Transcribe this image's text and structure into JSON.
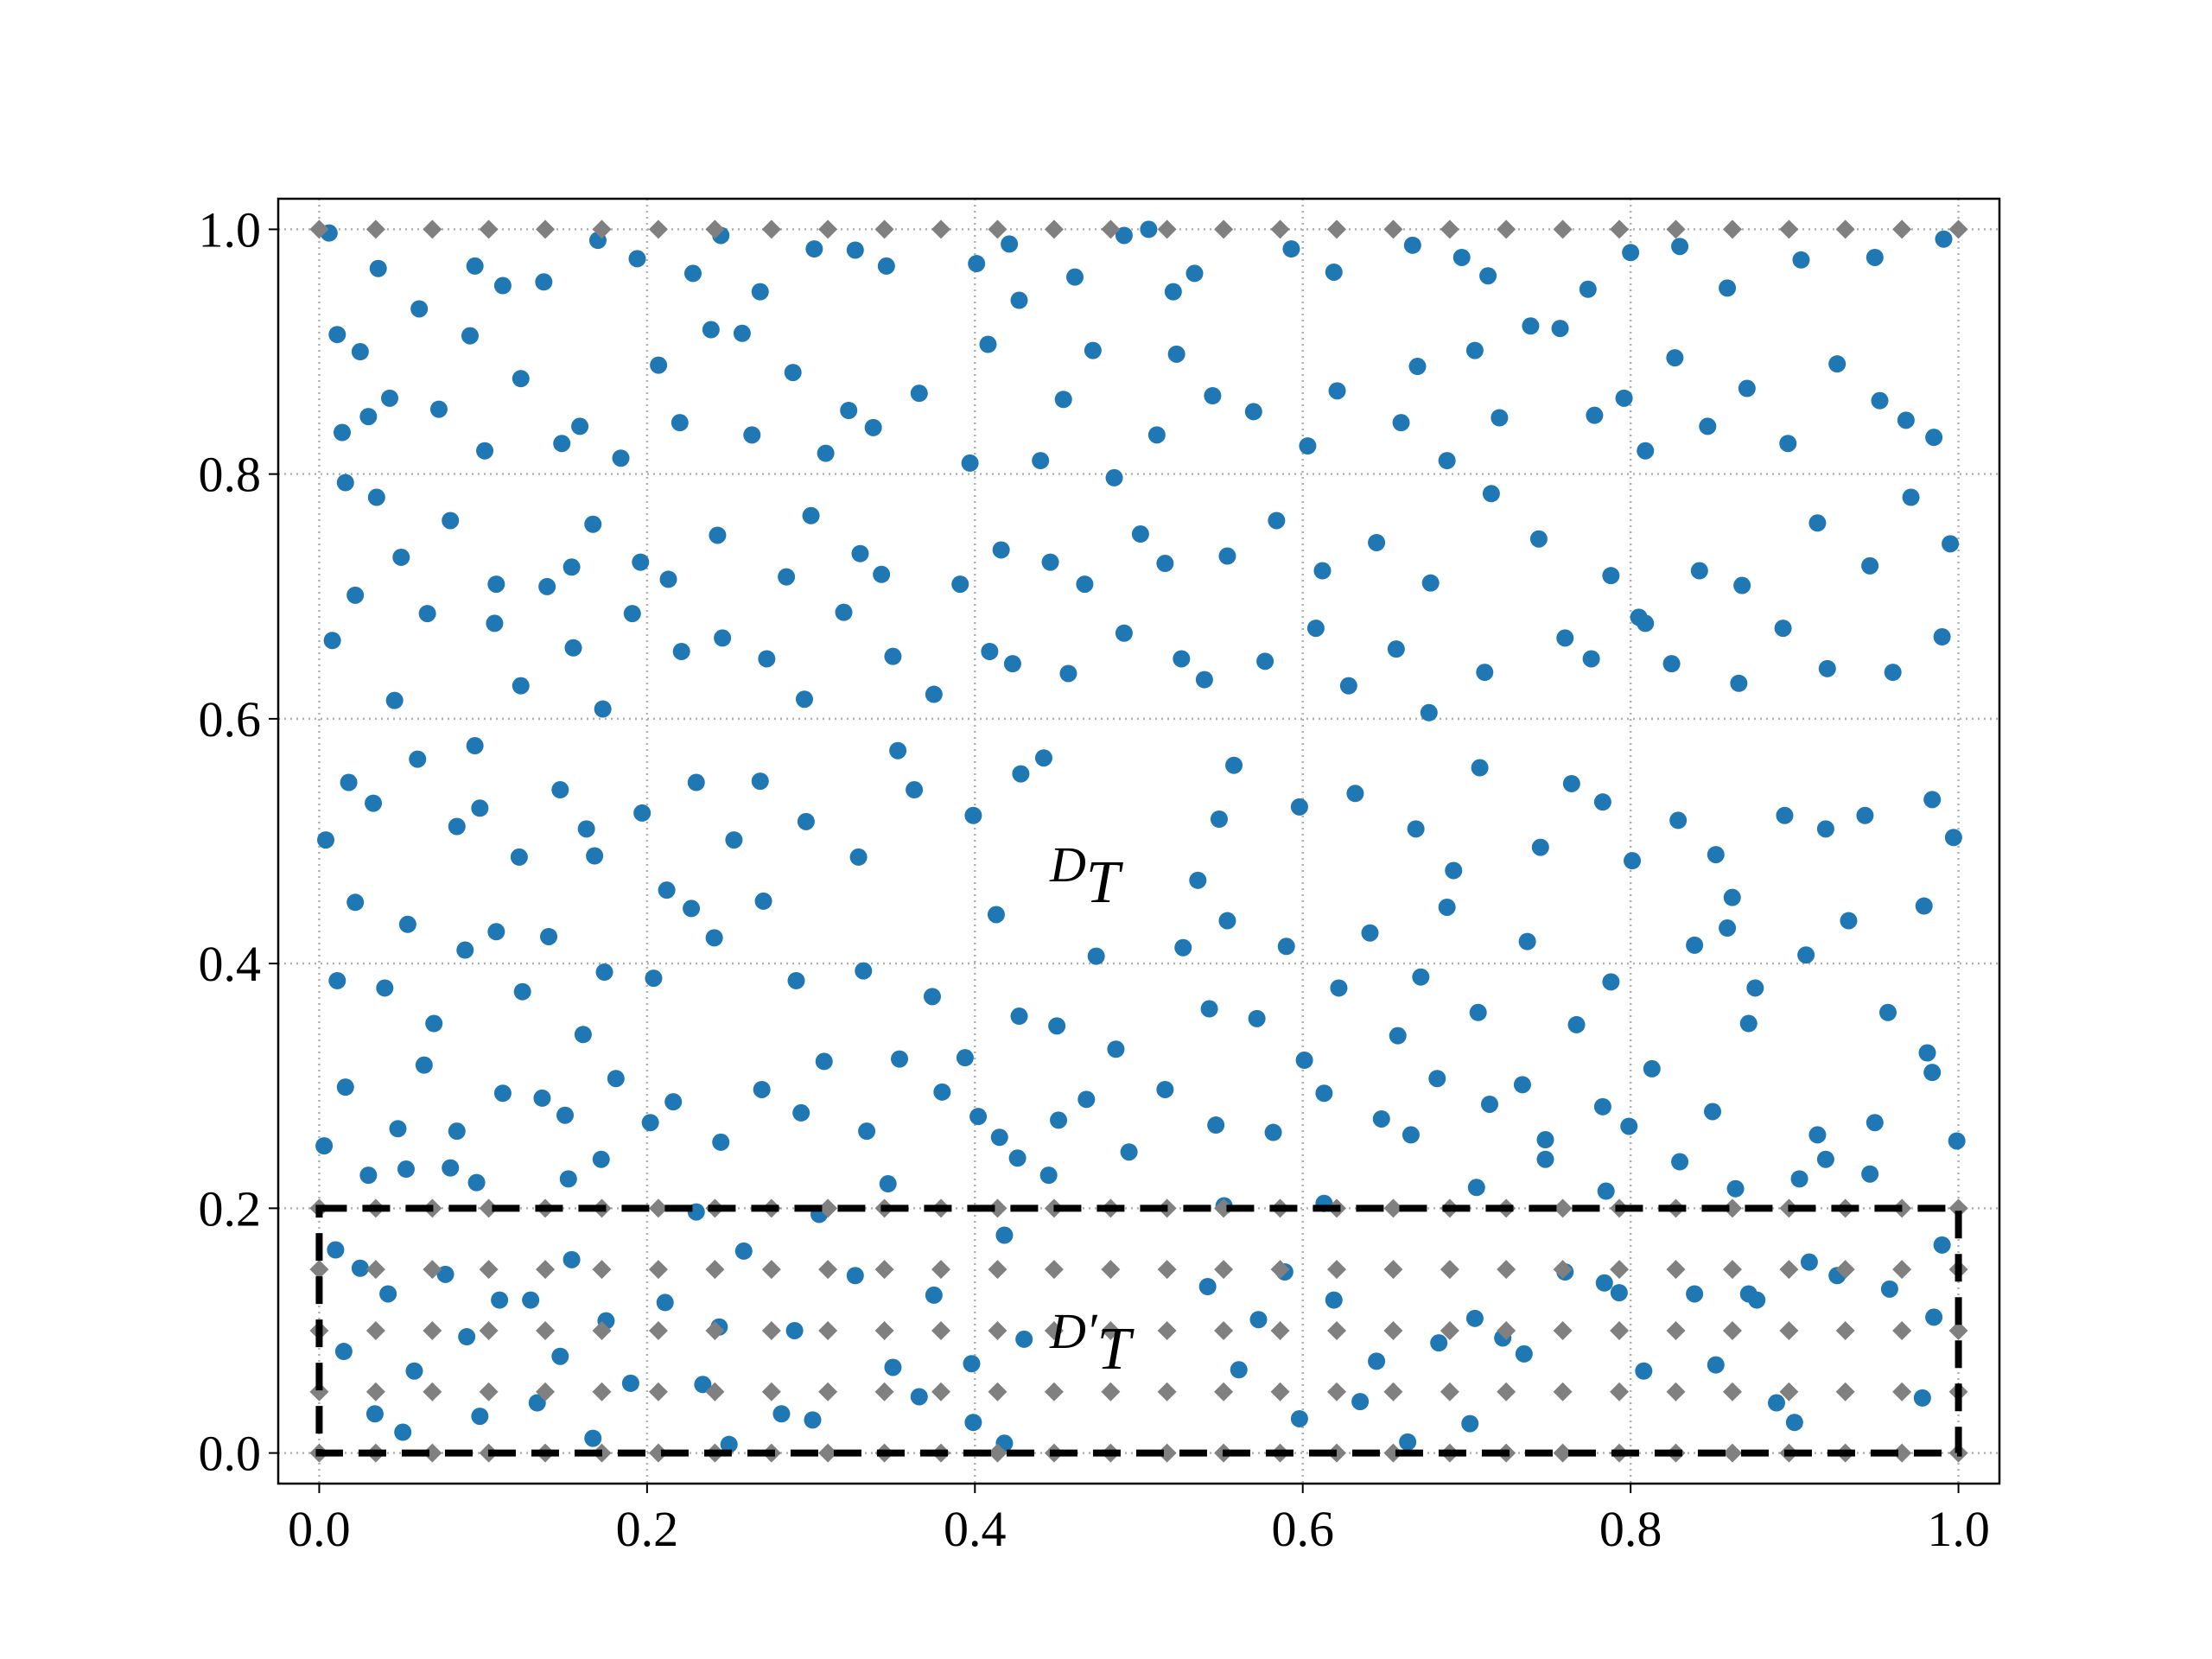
{
  "chart_data": {
    "type": "scatter",
    "xlim": [
      -0.025,
      1.025
    ],
    "ylim": [
      -0.025,
      1.025
    ],
    "xticks": [
      {
        "value": 0,
        "label": "0.0"
      },
      {
        "value": 0.2,
        "label": "0.2"
      },
      {
        "value": 0.4,
        "label": "0.4"
      },
      {
        "value": 0.6,
        "label": "0.6"
      },
      {
        "value": 0.8,
        "label": "0.8"
      },
      {
        "value": 1,
        "label": "1.0"
      }
    ],
    "yticks": [
      {
        "value": 0,
        "label": "0.0"
      },
      {
        "value": 0.2,
        "label": "0.2"
      },
      {
        "value": 0.4,
        "label": "0.4"
      },
      {
        "value": 0.6,
        "label": "0.6"
      },
      {
        "value": 0.8,
        "label": "0.8"
      },
      {
        "value": 1,
        "label": "1.0"
      }
    ],
    "grid": true,
    "region": {
      "x": [
        0,
        1
      ],
      "y": [
        0,
        0.2
      ]
    },
    "annotations": [
      {
        "text": "D",
        "sub": "T"
      },
      {
        "text": "D′",
        "sub": "T"
      }
    ],
    "series": [
      {
        "color": "#1f77b4",
        "marker": "circle",
        "x": [
          0.006,
          0.011,
          0.036,
          0.025,
          0.061,
          0.095,
          0.112,
          0.137,
          0.17,
          0.194,
          0.228,
          0.245,
          0.269,
          0.302,
          0.327,
          0.346,
          0.401,
          0.421,
          0.461,
          0.491,
          0.506,
          0.521,
          0.534,
          0.593,
          0.619,
          0.667,
          0.697,
          0.713,
          0.774,
          0.8,
          0.83,
          0.859,
          0.904,
          0.949,
          0.991,
          0.014,
          0.03,
          0.043,
          0.073,
          0.092,
          0.123,
          0.101,
          0.148,
          0.159,
          0.184,
          0.207,
          0.22,
          0.239,
          0.258,
          0.264,
          0.289,
          0.309,
          0.323,
          0.338,
          0.366,
          0.397,
          0.408,
          0.427,
          0.44,
          0.454,
          0.472,
          0.485,
          0.511,
          0.523,
          0.545,
          0.57,
          0.603,
          0.621,
          0.66,
          0.67,
          0.688,
          0.705,
          0.72,
          0.739,
          0.757,
          0.778,
          0.796,
          0.809,
          0.827,
          0.847,
          0.871,
          0.896,
          0.926,
          0.952,
          0.968,
          0.985,
          0.016,
          0.035,
          0.05,
          0.08,
          0.108,
          0.139,
          0.154,
          0.167,
          0.196,
          0.213,
          0.243,
          0.285,
          0.3,
          0.33,
          0.343,
          0.391,
          0.416,
          0.446,
          0.467,
          0.501,
          0.516,
          0.554,
          0.584,
          0.612,
          0.645,
          0.678,
          0.715,
          0.744,
          0.788,
          0.809,
          0.842,
          0.868,
          0.914,
          0.946,
          0.971,
          0.995,
          0.008,
          0.022,
          0.046,
          0.066,
          0.095,
          0.107,
          0.123,
          0.155,
          0.173,
          0.191,
          0.221,
          0.246,
          0.273,
          0.296,
          0.32,
          0.35,
          0.375,
          0.409,
          0.423,
          0.457,
          0.491,
          0.526,
          0.54,
          0.577,
          0.608,
          0.628,
          0.657,
          0.677,
          0.711,
          0.76,
          0.776,
          0.805,
          0.825,
          0.866,
          0.893,
          0.92,
          0.96,
          0.99,
          0.004,
          0.018,
          0.033,
          0.06,
          0.084,
          0.098,
          0.122,
          0.147,
          0.163,
          0.168,
          0.197,
          0.212,
          0.23,
          0.253,
          0.269,
          0.297,
          0.329,
          0.353,
          0.363,
          0.399,
          0.428,
          0.442,
          0.536,
          0.549,
          0.558,
          0.598,
          0.632,
          0.669,
          0.692,
          0.708,
          0.745,
          0.764,
          0.783,
          0.801,
          0.829,
          0.852,
          0.862,
          0.894,
          0.919,
          0.943,
          0.984,
          0.997,
          0.011,
          0.022,
          0.04,
          0.054,
          0.07,
          0.089,
          0.108,
          0.124,
          0.14,
          0.161,
          0.174,
          0.204,
          0.227,
          0.241,
          0.271,
          0.291,
          0.308,
          0.332,
          0.354,
          0.374,
          0.394,
          0.413,
          0.427,
          0.45,
          0.474,
          0.486,
          0.527,
          0.543,
          0.554,
          0.572,
          0.59,
          0.601,
          0.622,
          0.641,
          0.658,
          0.672,
          0.688,
          0.707,
          0.737,
          0.767,
          0.788,
          0.813,
          0.839,
          0.859,
          0.876,
          0.907,
          0.933,
          0.957,
          0.979,
          0.984,
          0.016,
          0.048,
          0.064,
          0.084,
          0.112,
          0.136,
          0.15,
          0.181,
          0.202,
          0.216,
          0.245,
          0.27,
          0.294,
          0.334,
          0.38,
          0.402,
          0.415,
          0.451,
          0.468,
          0.494,
          0.516,
          0.547,
          0.582,
          0.613,
          0.648,
          0.666,
          0.682,
          0.714,
          0.734,
          0.748,
          0.783,
          0.799,
          0.85,
          0.872,
          0.914,
          0.949,
          0.981,
          0.999,
          0.003,
          0.03,
          0.053,
          0.08,
          0.096,
          0.152,
          0.172,
          0.23,
          0.305,
          0.347,
          0.426,
          0.445,
          0.552,
          0.613,
          0.706,
          0.748,
          0.785,
          0.83,
          0.864,
          0.903,
          0.919,
          0.946,
          0.01,
          0.015,
          0.025,
          0.034,
          0.042,
          0.051,
          0.058,
          0.077,
          0.09,
          0.098,
          0.11,
          0.129,
          0.133,
          0.147,
          0.154,
          0.167,
          0.175,
          0.19,
          0.211,
          0.234,
          0.244,
          0.25,
          0.259,
          0.282,
          0.29,
          0.301,
          0.327,
          0.35,
          0.366,
          0.375,
          0.398,
          0.399,
          0.418,
          0.418,
          0.43,
          0.542,
          0.561,
          0.573,
          0.589,
          0.598,
          0.619,
          0.635,
          0.645,
          0.664,
          0.683,
          0.702,
          0.705,
          0.722,
          0.735,
          0.76,
          0.784,
          0.793,
          0.808,
          0.839,
          0.852,
          0.872,
          0.877,
          0.889,
          0.9,
          0.909,
          0.926,
          0.958,
          0.978,
          0.985,
          0.99
        ],
        "values": [
          0.997,
          0.914,
          0.968,
          0.9,
          0.935,
          0.97,
          0.954,
          0.957,
          0.991,
          0.976,
          0.964,
          0.995,
          0.949,
          0.984,
          0.983,
          0.97,
          0.972,
          0.988,
          0.961,
          0.995,
          1.0,
          0.949,
          0.964,
          0.984,
          0.965,
          0.987,
          0.977,
          0.962,
          0.951,
          0.981,
          0.986,
          0.952,
          0.975,
          0.977,
          0.992,
          0.834,
          0.847,
          0.862,
          0.853,
          0.913,
          0.878,
          0.819,
          0.825,
          0.839,
          0.813,
          0.889,
          0.842,
          0.918,
          0.915,
          0.832,
          0.883,
          0.817,
          0.852,
          0.838,
          0.866,
          0.809,
          0.906,
          0.942,
          0.811,
          0.861,
          0.901,
          0.797,
          0.832,
          0.898,
          0.864,
          0.851,
          0.823,
          0.868,
          0.842,
          0.888,
          0.811,
          0.901,
          0.846,
          0.921,
          0.919,
          0.848,
          0.862,
          0.819,
          0.895,
          0.839,
          0.87,
          0.825,
          0.89,
          0.86,
          0.844,
          0.83,
          0.793,
          0.781,
          0.732,
          0.762,
          0.71,
          0.708,
          0.724,
          0.759,
          0.728,
          0.714,
          0.75,
          0.716,
          0.766,
          0.735,
          0.718,
          0.71,
          0.738,
          0.728,
          0.71,
          0.751,
          0.727,
          0.733,
          0.762,
          0.721,
          0.744,
          0.711,
          0.784,
          0.747,
          0.717,
          0.678,
          0.721,
          0.709,
          0.76,
          0.725,
          0.781,
          0.743,
          0.664,
          0.701,
          0.615,
          0.686,
          0.578,
          0.678,
          0.627,
          0.658,
          0.608,
          0.686,
          0.655,
          0.666,
          0.649,
          0.616,
          0.687,
          0.651,
          0.62,
          0.655,
          0.645,
          0.637,
          0.67,
          0.649,
          0.632,
          0.647,
          0.674,
          0.627,
          0.657,
          0.605,
          0.638,
          0.666,
          0.649,
          0.683,
          0.645,
          0.629,
          0.674,
          0.641,
          0.638,
          0.667,
          0.501,
          0.548,
          0.531,
          0.567,
          0.512,
          0.527,
          0.487,
          0.542,
          0.51,
          0.488,
          0.523,
          0.46,
          0.548,
          0.501,
          0.549,
          0.516,
          0.487,
          0.574,
          0.542,
          0.521,
          0.555,
          0.568,
          0.468,
          0.518,
          0.562,
          0.528,
          0.539,
          0.51,
          0.476,
          0.56,
          0.495,
          0.547,
          0.532,
          0.484,
          0.517,
          0.489,
          0.454,
          0.521,
          0.51,
          0.521,
          0.534,
          0.503,
          0.386,
          0.45,
          0.38,
          0.432,
          0.351,
          0.411,
          0.426,
          0.377,
          0.422,
          0.342,
          0.393,
          0.388,
          0.445,
          0.421,
          0.451,
          0.386,
          0.32,
          0.394,
          0.322,
          0.373,
          0.323,
          0.44,
          0.357,
          0.349,
          0.406,
          0.33,
          0.413,
          0.363,
          0.435,
          0.355,
          0.414,
          0.321,
          0.38,
          0.425,
          0.341,
          0.389,
          0.446,
          0.36,
          0.418,
          0.35,
          0.385,
          0.314,
          0.415,
          0.429,
          0.38,
          0.407,
          0.435,
          0.36,
          0.447,
          0.311,
          0.299,
          0.265,
          0.317,
          0.263,
          0.294,
          0.29,
          0.276,
          0.306,
          0.27,
          0.287,
          0.254,
          0.297,
          0.278,
          0.263,
          0.295,
          0.275,
          0.258,
          0.272,
          0.289,
          0.246,
          0.297,
          0.268,
          0.262,
          0.294,
          0.273,
          0.26,
          0.306,
          0.285,
          0.301,
          0.256,
          0.283,
          0.267,
          0.279,
          0.351,
          0.26,
          0.27,
          0.327,
          0.255,
          0.251,
          0.227,
          0.232,
          0.233,
          0.221,
          0.224,
          0.24,
          0.197,
          0.195,
          0.22,
          0.241,
          0.227,
          0.202,
          0.204,
          0.217,
          0.24,
          0.214,
          0.238,
          0.216,
          0.224,
          0.24,
          0.228,
          0.166,
          0.083,
          0.151,
          0.032,
          0.13,
          0.017,
          0.067,
          0.146,
          0.095,
          0.03,
          0.125,
          0.125,
          0.041,
          0.079,
          0.158,
          0.012,
          0.108,
          0.057,
          0.123,
          0.056,
          0.103,
          0.007,
          0.165,
          0.032,
          0.1,
          0.027,
          0.145,
          0.07,
          0.046,
          0.129,
          0.073,
          0.025,
          0.178,
          0.008,
          0.093,
          0.136,
          0.068,
          0.109,
          0.148,
          0.028,
          0.125,
          0.042,
          0.075,
          0.009,
          0.09,
          0.024,
          0.11,
          0.094,
          0.081,
          0.148,
          0.139,
          0.131,
          0.067,
          0.13,
          0.072,
          0.13,
          0.125,
          0.041,
          0.025,
          0.156,
          0.145,
          0.134,
          0.045,
          0.111,
          0.17
        ]
      },
      {
        "color": "#808080",
        "marker": "diamond",
        "x": [
          0,
          0.0345,
          0.069,
          0.1034,
          0.1379,
          0.1724,
          0.2069,
          0.2414,
          0.2759,
          0.3103,
          0.3448,
          0.3793,
          0.4138,
          0.4483,
          0.4828,
          0.5172,
          0.5517,
          0.5862,
          0.6207,
          0.6552,
          0.6897,
          0.7241,
          0.7586,
          0.7931,
          0.8276,
          0.8621,
          0.8966,
          0.931,
          0.9655,
          1,
          0,
          0.0345,
          0.069,
          0.1034,
          0.1379,
          0.1724,
          0.2069,
          0.2414,
          0.2759,
          0.3103,
          0.3448,
          0.3793,
          0.4138,
          0.4483,
          0.4828,
          0.5172,
          0.5517,
          0.5862,
          0.6207,
          0.6552,
          0.6897,
          0.7241,
          0.7586,
          0.7931,
          0.8276,
          0.8621,
          0.8966,
          0.931,
          0.9655,
          1,
          0,
          0.0345,
          0.069,
          0.1034,
          0.1379,
          0.1724,
          0.2069,
          0.2414,
          0.2759,
          0.3103,
          0.3448,
          0.3793,
          0.4138,
          0.4483,
          0.4828,
          0.5172,
          0.5517,
          0.5862,
          0.6207,
          0.6552,
          0.6897,
          0.7241,
          0.7586,
          0.7931,
          0.8276,
          0.8621,
          0.8966,
          0.931,
          0.9655,
          1,
          0,
          0.0345,
          0.069,
          0.1034,
          0.1379,
          0.1724,
          0.2069,
          0.2414,
          0.2759,
          0.3103,
          0.3448,
          0.3793,
          0.4138,
          0.4483,
          0.4828,
          0.5172,
          0.5517,
          0.5862,
          0.6207,
          0.6552,
          0.6897,
          0.7241,
          0.7586,
          0.7931,
          0.8276,
          0.8621,
          0.8966,
          0.931,
          0.9655,
          1,
          0,
          0.0345,
          0.069,
          0.1034,
          0.1379,
          0.1724,
          0.2069,
          0.2414,
          0.2759,
          0.3103,
          0.3448,
          0.3793,
          0.4138,
          0.4483,
          0.4828,
          0.5172,
          0.5517,
          0.5862,
          0.6207,
          0.6552,
          0.6897,
          0.7241,
          0.7586,
          0.7931,
          0.8276,
          0.8621,
          0.8966,
          0.931,
          0.9655,
          1,
          0,
          0.0345,
          0.069,
          0.1034,
          0.1379,
          0.1724,
          0.2069,
          0.2414,
          0.2759,
          0.3103,
          0.3448,
          0.3793,
          0.4138,
          0.4483,
          0.4828,
          0.5172,
          0.5517,
          0.5862,
          0.6207,
          0.6552,
          0.6897,
          0.7241,
          0.7586,
          0.7931,
          0.8276,
          0.8621,
          0.8966,
          0.931,
          0.9655,
          1
        ],
        "values": [
          1,
          1,
          1,
          1,
          1,
          1,
          1,
          1,
          1,
          1,
          1,
          1,
          1,
          1,
          1,
          1,
          1,
          1,
          1,
          1,
          1,
          1,
          1,
          1,
          1,
          1,
          1,
          1,
          1,
          1,
          0,
          0,
          0,
          0,
          0,
          0,
          0,
          0,
          0,
          0,
          0,
          0,
          0,
          0,
          0,
          0,
          0,
          0,
          0,
          0,
          0,
          0,
          0,
          0,
          0,
          0,
          0,
          0,
          0,
          0,
          0.05,
          0.05,
          0.05,
          0.05,
          0.05,
          0.05,
          0.05,
          0.05,
          0.05,
          0.05,
          0.05,
          0.05,
          0.05,
          0.05,
          0.05,
          0.05,
          0.05,
          0.05,
          0.05,
          0.05,
          0.05,
          0.05,
          0.05,
          0.05,
          0.05,
          0.05,
          0.05,
          0.05,
          0.05,
          0.05,
          0.1,
          0.1,
          0.1,
          0.1,
          0.1,
          0.1,
          0.1,
          0.1,
          0.1,
          0.1,
          0.1,
          0.1,
          0.1,
          0.1,
          0.1,
          0.1,
          0.1,
          0.1,
          0.1,
          0.1,
          0.1,
          0.1,
          0.1,
          0.1,
          0.1,
          0.1,
          0.1,
          0.1,
          0.1,
          0.1,
          0.15,
          0.15,
          0.15,
          0.15,
          0.15,
          0.15,
          0.15,
          0.15,
          0.15,
          0.15,
          0.15,
          0.15,
          0.15,
          0.15,
          0.15,
          0.15,
          0.15,
          0.15,
          0.15,
          0.15,
          0.15,
          0.15,
          0.15,
          0.15,
          0.15,
          0.15,
          0.15,
          0.15,
          0.15,
          0.15,
          0.2,
          0.2,
          0.2,
          0.2,
          0.2,
          0.2,
          0.2,
          0.2,
          0.2,
          0.2,
          0.2,
          0.2,
          0.2,
          0.2,
          0.2,
          0.2,
          0.2,
          0.2,
          0.2,
          0.2,
          0.2,
          0.2,
          0.2,
          0.2,
          0.2,
          0.2,
          0.2,
          0.2,
          0.2,
          0.2
        ]
      }
    ]
  }
}
